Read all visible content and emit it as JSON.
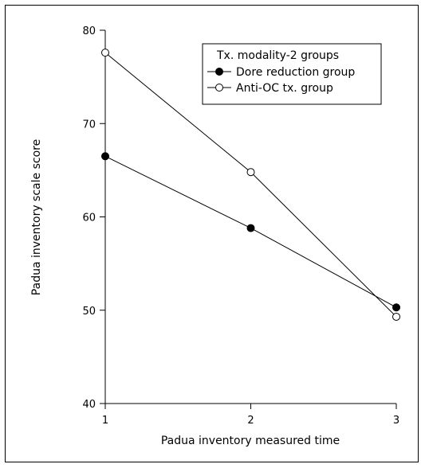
{
  "chart_data": {
    "type": "line",
    "title": "",
    "xlabel": "Padua inventory measured time",
    "ylabel": "Padua inventory scale score",
    "x": [
      1,
      2,
      3
    ],
    "xlim": [
      1,
      3
    ],
    "ylim": [
      40,
      80
    ],
    "xticks": [
      "1",
      "2",
      "3"
    ],
    "yticks": [
      "40",
      "50",
      "60",
      "70",
      "80"
    ],
    "grid": false,
    "legend_position": "top-right",
    "legend_title": "Tx. modality-2 groups",
    "series": [
      {
        "name": "Dore reduction group",
        "marker": "filled-circle",
        "values": [
          66.5,
          58.8,
          50.3
        ]
      },
      {
        "name": "Anti-OC tx. group",
        "marker": "open-circle",
        "values": [
          77.6,
          64.8,
          49.3
        ]
      }
    ]
  }
}
